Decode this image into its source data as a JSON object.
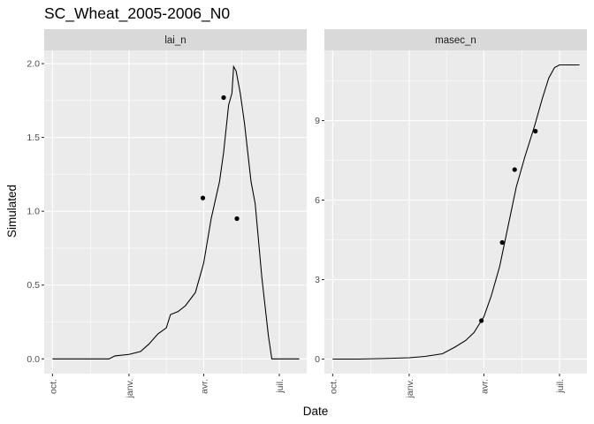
{
  "chart_data": {
    "type": "line",
    "title": "SC_Wheat_2005-2006_N0",
    "xlabel": "Date",
    "ylabel": "Simulated",
    "grid": true,
    "legend": "none",
    "x_ticks": [
      {
        "label": "oct.",
        "date": "2005-10-01"
      },
      {
        "label": "janv.",
        "date": "2006-01-01"
      },
      {
        "label": "avr.",
        "date": "2006-04-01"
      },
      {
        "label": "juil.",
        "date": "2006-07-01"
      }
    ],
    "panels": [
      {
        "strip": "lai_n",
        "xlim": [
          "2005-09-21",
          "2006-08-03"
        ],
        "ylim": [
          -0.1,
          2.09
        ],
        "y_ticks": [
          {
            "label": "0.0",
            "value": 0.0
          },
          {
            "label": "0.5",
            "value": 0.5
          },
          {
            "label": "1.0",
            "value": 1.0
          },
          {
            "label": "1.5",
            "value": 1.5
          },
          {
            "label": "2.0",
            "value": 2.0
          }
        ],
        "y_minor": [
          0.25,
          0.75,
          1.25,
          1.75
        ],
        "simulated": [
          [
            "2005-10-01",
            0.0
          ],
          [
            "2005-11-01",
            0.0
          ],
          [
            "2005-12-01",
            0.0
          ],
          [
            "2005-12-08",
            0.0
          ],
          [
            "2005-12-15",
            0.02
          ],
          [
            "2006-01-01",
            0.03
          ],
          [
            "2006-01-15",
            0.05
          ],
          [
            "2006-01-25",
            0.1
          ],
          [
            "2006-02-05",
            0.17
          ],
          [
            "2006-02-15",
            0.21
          ],
          [
            "2006-02-20",
            0.3
          ],
          [
            "2006-03-01",
            0.32
          ],
          [
            "2006-03-10",
            0.36
          ],
          [
            "2006-03-22",
            0.45
          ],
          [
            "2006-04-01",
            0.65
          ],
          [
            "2006-04-10",
            0.95
          ],
          [
            "2006-04-20",
            1.2
          ],
          [
            "2006-04-25",
            1.4
          ],
          [
            "2006-05-01",
            1.72
          ],
          [
            "2006-05-05",
            1.8
          ],
          [
            "2006-05-07",
            1.98
          ],
          [
            "2006-05-10",
            1.95
          ],
          [
            "2006-05-15",
            1.8
          ],
          [
            "2006-05-20",
            1.6
          ],
          [
            "2006-05-28",
            1.2
          ],
          [
            "2006-06-02",
            1.05
          ],
          [
            "2006-06-10",
            0.55
          ],
          [
            "2006-06-18",
            0.15
          ],
          [
            "2006-06-22",
            0.0
          ],
          [
            "2006-07-01",
            0.0
          ],
          [
            "2006-07-25",
            0.0
          ]
        ],
        "observed": [
          [
            "2006-03-31",
            1.09
          ],
          [
            "2006-04-25",
            1.77
          ],
          [
            "2006-05-11",
            0.95
          ]
        ]
      },
      {
        "strip": "masec_n",
        "xlim": [
          "2005-09-21",
          "2006-08-03"
        ],
        "ylim": [
          -0.55,
          11.65
        ],
        "y_ticks": [
          {
            "label": "0",
            "value": 0
          },
          {
            "label": "3",
            "value": 3
          },
          {
            "label": "6",
            "value": 6
          },
          {
            "label": "9",
            "value": 9
          }
        ],
        "y_minor": [
          1.5,
          4.5,
          7.5,
          10.5
        ],
        "simulated": [
          [
            "2005-10-01",
            0.0
          ],
          [
            "2005-11-01",
            0.0
          ],
          [
            "2005-12-01",
            0.02
          ],
          [
            "2006-01-01",
            0.05
          ],
          [
            "2006-01-20",
            0.1
          ],
          [
            "2006-02-10",
            0.2
          ],
          [
            "2006-02-25",
            0.45
          ],
          [
            "2006-03-10",
            0.7
          ],
          [
            "2006-03-20",
            1.0
          ],
          [
            "2006-04-01",
            1.6
          ],
          [
            "2006-04-10",
            2.4
          ],
          [
            "2006-04-20",
            3.5
          ],
          [
            "2006-04-30",
            5.0
          ],
          [
            "2006-05-10",
            6.5
          ],
          [
            "2006-05-20",
            7.6
          ],
          [
            "2006-06-01",
            8.8
          ],
          [
            "2006-06-10",
            9.8
          ],
          [
            "2006-06-18",
            10.6
          ],
          [
            "2006-06-25",
            11.0
          ],
          [
            "2006-07-01",
            11.1
          ],
          [
            "2006-07-25",
            11.1
          ]
        ],
        "observed": [
          [
            "2006-03-29",
            1.45
          ],
          [
            "2006-04-23",
            4.4
          ],
          [
            "2006-05-08",
            7.15
          ],
          [
            "2006-06-02",
            8.6
          ]
        ]
      }
    ]
  }
}
